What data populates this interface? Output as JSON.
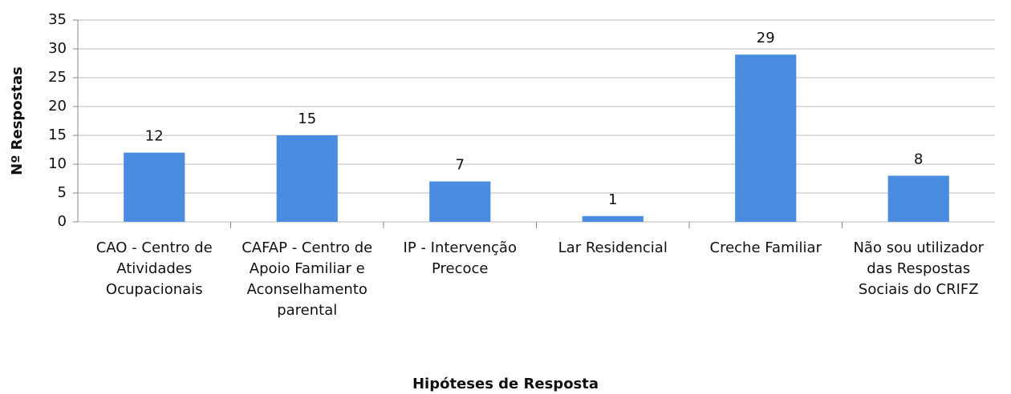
{
  "chart_data": {
    "type": "bar",
    "x_label": "Hipóteses de Resposta",
    "y_label": "Nº Respostas",
    "categories": [
      "CAO - Centro de Atividades Ocupacionais",
      "CAFAP - Centro de Apoio Familiar e Aconselhamento parental",
      "IP - Intervenção Precoce",
      "Lar Residencial",
      "Creche Familiar",
      "Não sou utilizador das Respostas Sociais do CRIFZ"
    ],
    "values": [
      12,
      15,
      7,
      1,
      29,
      8
    ],
    "color": "#4a8de0",
    "ylim": [
      0,
      35
    ],
    "yticks": [
      0,
      5,
      10,
      15,
      20,
      25,
      30,
      35
    ],
    "grid": true
  }
}
